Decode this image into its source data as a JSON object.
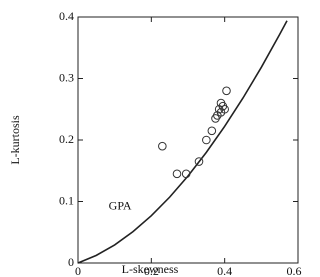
{
  "chart_data": {
    "type": "scatter",
    "x_label": "L-skewness",
    "y_label": "L-kurtosis",
    "xlim": [
      0,
      0.6
    ],
    "ylim": [
      0,
      0.4
    ],
    "xticks": [
      0,
      0.2,
      0.4,
      0.6
    ],
    "yticks": [
      0,
      0.1,
      0.2,
      0.3,
      0.4
    ],
    "series": [
      {
        "name": "GPA",
        "type": "line",
        "color": "#222222",
        "x": [
          0,
          0.05,
          0.1,
          0.15,
          0.2,
          0.25,
          0.3,
          0.35,
          0.4,
          0.45,
          0.5,
          0.55,
          0.57
        ],
        "values": [
          0,
          0.0124,
          0.0294,
          0.051,
          0.0769,
          0.1071,
          0.1415,
          0.1799,
          0.2222,
          0.2683,
          0.3182,
          0.3717,
          0.394
        ]
      },
      {
        "type": "scatter",
        "color": "#333333",
        "x": [
          0.23,
          0.27,
          0.295,
          0.33,
          0.35,
          0.365,
          0.375,
          0.38,
          0.385,
          0.39,
          0.395,
          0.39,
          0.4,
          0.405
        ],
        "values": [
          0.19,
          0.145,
          0.145,
          0.165,
          0.2,
          0.215,
          0.235,
          0.24,
          0.25,
          0.26,
          0.255,
          0.245,
          0.25,
          0.28
        ]
      }
    ]
  }
}
